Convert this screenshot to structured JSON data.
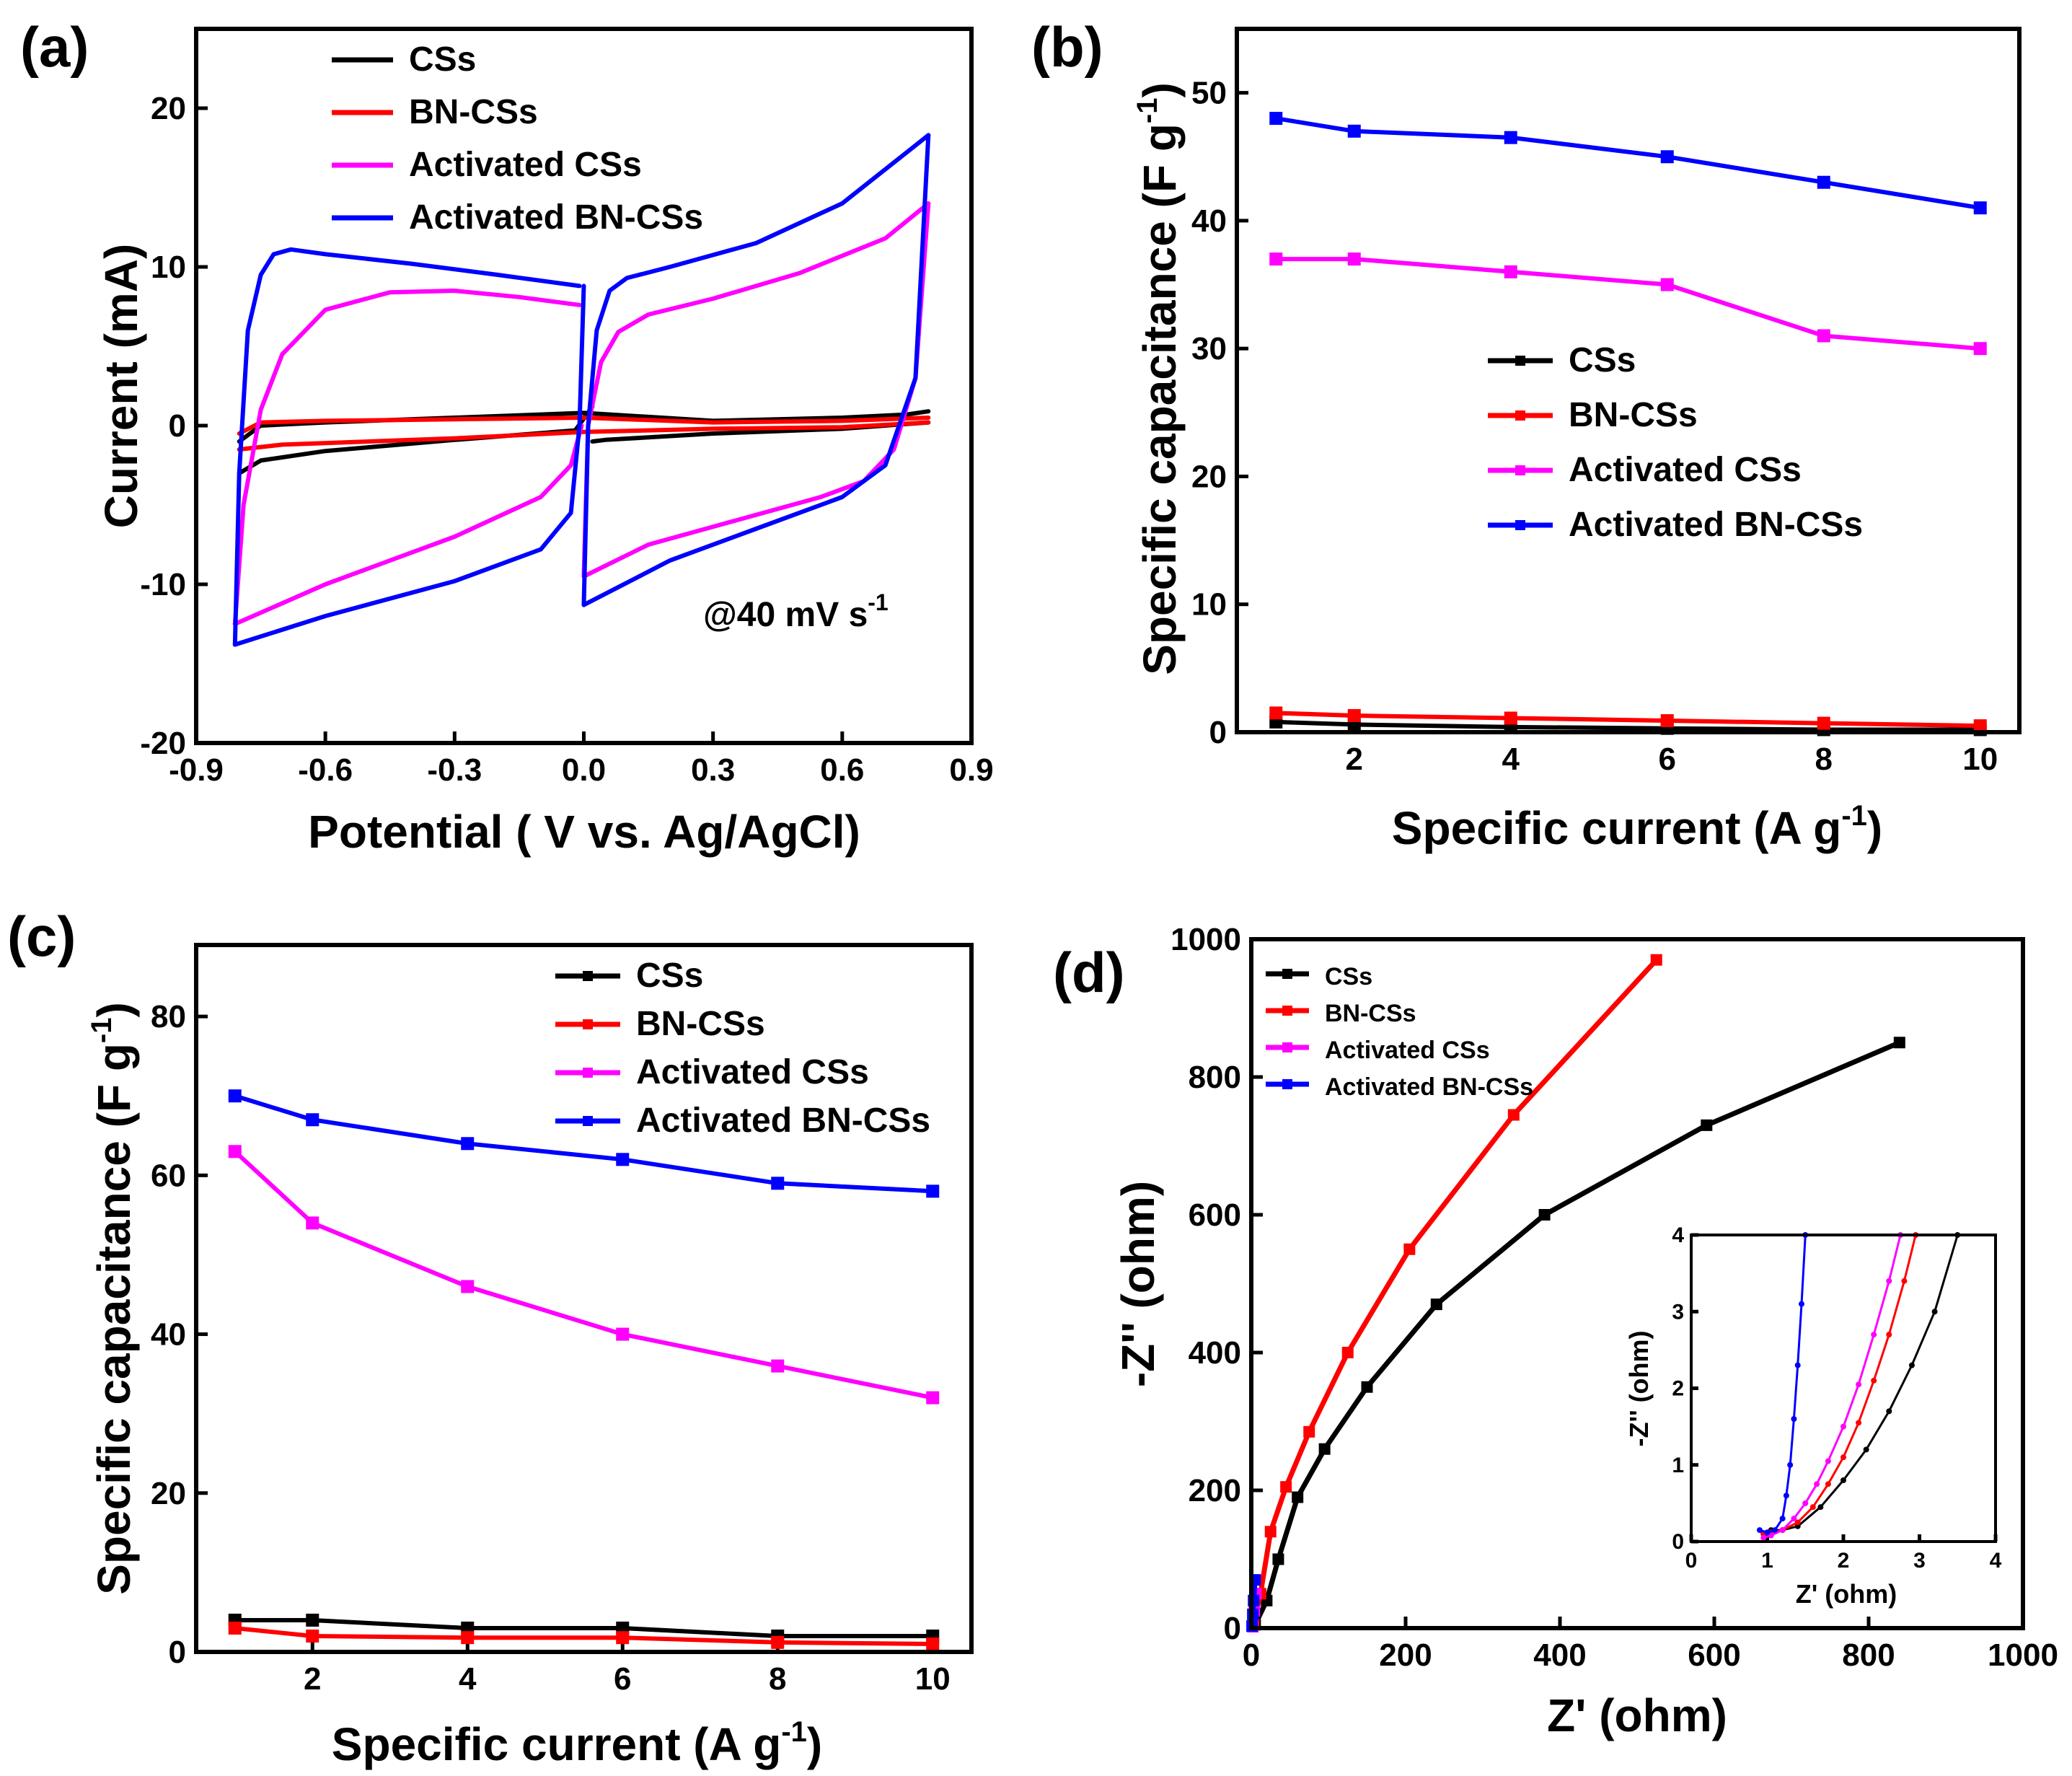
{
  "chart_data": [
    {
      "id": "a",
      "type": "line",
      "panel_label": "(a)",
      "title": "",
      "xlabel": "Potential ( V vs. Ag/AgCl)",
      "ylabel": "Current (mA)",
      "xlim": [
        -0.9,
        0.9
      ],
      "ylim": [
        -20,
        25
      ],
      "xticks": [
        "-0.9",
        "-0.6",
        "-0.3",
        "0.0",
        "0.3",
        "0.6",
        "0.9"
      ],
      "yticks": [
        "-20",
        "-10",
        "0",
        "10",
        "20"
      ],
      "annotation": "@40 mV s",
      "annotation_sup": "-1",
      "legend_position": "top-left",
      "series": [
        {
          "name": "CSs",
          "color": "#000000",
          "branches": [
            {
              "x": [
                -0.8,
                -0.75,
                -0.6,
                -0.3,
                0,
                0.3,
                0.6,
                0.75,
                0.8
              ],
              "y": [
                -1,
                0,
                0.2,
                0.5,
                0.8,
                0.3,
                0.5,
                0.7,
                0.9
              ]
            },
            {
              "x": [
                -0.8,
                -0.75,
                -0.6,
                -0.3,
                -0.02,
                0.02
              ],
              "y": [
                -3,
                -2.2,
                -1.6,
                -0.9,
                -0.3,
                1.2
              ]
            },
            {
              "x": [
                0.02,
                0.05,
                0.3,
                0.6,
                0.8
              ],
              "y": [
                -1,
                -0.9,
                -0.5,
                -0.2,
                0.2
              ]
            }
          ]
        },
        {
          "name": "BN-CSs",
          "color": "#ff0000",
          "branches": [
            {
              "x": [
                -0.8,
                -0.75,
                -0.6,
                -0.3,
                0,
                0.3,
                0.6,
                0.8
              ],
              "y": [
                -0.5,
                0.2,
                0.3,
                0.4,
                0.5,
                0.2,
                0.3,
                0.5
              ]
            },
            {
              "x": [
                -0.8,
                -0.7,
                -0.3,
                0,
                0.3,
                0.6,
                0.8
              ],
              "y": [
                -1.5,
                -1.2,
                -0.8,
                -0.4,
                -0.2,
                -0.1,
                0.2
              ]
            }
          ]
        },
        {
          "name": "Activated CSs",
          "color": "#ff00ff",
          "branches": [
            {
              "x": [
                -0.81,
                -0.79,
                -0.75,
                -0.7,
                -0.6,
                -0.45,
                -0.3,
                -0.15,
                -0.01
              ],
              "y": [
                -12.5,
                -5,
                1,
                4.5,
                7.3,
                8.4,
                8.5,
                8.1,
                7.6
              ]
            },
            {
              "x": [
                -0.81,
                -0.6,
                -0.3,
                -0.1,
                -0.03,
                -0.005
              ],
              "y": [
                -12.5,
                -10,
                -7,
                -4.5,
                -2.5,
                0
              ]
            },
            {
              "x": [
                0.0,
                0.01,
                0.04,
                0.08,
                0.15,
                0.3,
                0.5,
                0.7,
                0.8
              ],
              "y": [
                -9.5,
                0,
                4,
                5.9,
                7,
                8,
                9.6,
                11.8,
                14
              ]
            },
            {
              "x": [
                0.0,
                0.15,
                0.35,
                0.55,
                0.65,
                0.72,
                0.77,
                0.8
              ],
              "y": [
                -9.5,
                -7.5,
                -6,
                -4.5,
                -3.5,
                -1.5,
                3,
                14
              ]
            }
          ]
        },
        {
          "name": "Activated BN-CSs",
          "color": "#0000ff",
          "branches": [
            {
              "x": [
                -0.81,
                -0.8,
                -0.78,
                -0.75,
                -0.72,
                -0.68,
                -0.6,
                -0.4,
                -0.2,
                -0.01
              ],
              "y": [
                -13.8,
                -3,
                6,
                9.5,
                10.8,
                11.1,
                10.8,
                10.2,
                9.5,
                8.8
              ]
            },
            {
              "x": [
                -0.81,
                -0.6,
                -0.3,
                -0.1,
                -0.03,
                -0.01,
                0.0
              ],
              "y": [
                -13.8,
                -12,
                -9.8,
                -7.8,
                -5.5,
                0,
                8.8
              ]
            },
            {
              "x": [
                0.0,
                0.01,
                0.03,
                0.06,
                0.1,
                0.2,
                0.4,
                0.6,
                0.8
              ],
              "y": [
                -11.3,
                0,
                6,
                8.5,
                9.3,
                10,
                11.5,
                14,
                18.3
              ]
            },
            {
              "x": [
                0.0,
                0.2,
                0.4,
                0.6,
                0.7,
                0.77,
                0.8
              ],
              "y": [
                -11.3,
                -8.5,
                -6.5,
                -4.5,
                -2.5,
                3,
                18.3
              ]
            }
          ]
        }
      ]
    },
    {
      "id": "b",
      "type": "line",
      "panel_label": "(b)",
      "title": "",
      "xlabel": "Specific current (A g",
      "xlabel_sup": "-1",
      "ylabel": "Specific capacitance (F g",
      "ylabel_sup": "-1",
      "xlim": [
        0.5,
        10.5
      ],
      "ylim": [
        0,
        55
      ],
      "xticks": [
        "2",
        "4",
        "6",
        "8",
        "10"
      ],
      "yticks": [
        "0",
        "10",
        "20",
        "30",
        "40",
        "50"
      ],
      "legend_position": "center-right",
      "x": [
        1,
        2,
        4,
        6,
        8,
        10
      ],
      "series": [
        {
          "name": "CSs",
          "color": "#000000",
          "values": [
            0.8,
            0.6,
            0.4,
            0.3,
            0.2,
            0.2
          ]
        },
        {
          "name": "BN-CSs",
          "color": "#ff0000",
          "values": [
            1.5,
            1.3,
            1.1,
            0.9,
            0.7,
            0.5
          ]
        },
        {
          "name": "Activated CSs",
          "color": "#ff00ff",
          "values": [
            37,
            37,
            36,
            35,
            31,
            30
          ]
        },
        {
          "name": "Activated BN-CSs",
          "color": "#0000ff",
          "values": [
            48,
            47,
            46.5,
            45,
            43,
            41
          ]
        }
      ]
    },
    {
      "id": "c",
      "type": "line",
      "panel_label": "(c)",
      "title": "",
      "xlabel": "Specific current (A g",
      "xlabel_sup": "-1",
      "ylabel": "Specific capacitance (F g",
      "ylabel_sup": "-1",
      "xlim": [
        0.5,
        10.5
      ],
      "ylim": [
        0,
        89
      ],
      "xticks": [
        "2",
        "4",
        "6",
        "8",
        "10"
      ],
      "yticks": [
        "0",
        "20",
        "40",
        "60",
        "80"
      ],
      "legend_position": "top-right",
      "x": [
        1,
        2,
        4,
        6,
        8,
        10
      ],
      "series": [
        {
          "name": "CSs",
          "color": "#000000",
          "values": [
            4,
            4,
            3,
            3,
            2,
            2
          ]
        },
        {
          "name": "BN-CSs",
          "color": "#ff0000",
          "values": [
            3,
            2,
            1.8,
            1.8,
            1.2,
            1
          ]
        },
        {
          "name": "Activated CSs",
          "color": "#ff00ff",
          "values": [
            63,
            54,
            46,
            40,
            36,
            32
          ]
        },
        {
          "name": "Activated BN-CSs",
          "color": "#0000ff",
          "values": [
            70,
            67,
            64,
            62,
            59,
            58
          ]
        }
      ]
    },
    {
      "id": "d",
      "type": "scatter",
      "panel_label": "(d)",
      "title": "",
      "xlabel": "Z' (ohm)",
      "ylabel": "-Z'' (ohm)",
      "xlim": [
        0,
        1000
      ],
      "ylim": [
        0,
        1000
      ],
      "xticks": [
        "0",
        "200",
        "400",
        "600",
        "800",
        "1000"
      ],
      "yticks": [
        "0",
        "200",
        "400",
        "600",
        "800",
        "1000"
      ],
      "legend_position": "top-left",
      "series": [
        {
          "name": "CSs",
          "color": "#000000",
          "x": [
            5,
            20,
            35,
            60,
            95,
            150,
            240,
            380,
            590,
            840
          ],
          "y": [
            5,
            40,
            100,
            190,
            260,
            350,
            470,
            600,
            730,
            850
          ]
        },
        {
          "name": "BN-CSs",
          "color": "#ff0000",
          "x": [
            3,
            12,
            25,
            45,
            75,
            125,
            205,
            340,
            525
          ],
          "y": [
            5,
            50,
            140,
            205,
            285,
            400,
            550,
            745,
            970
          ]
        },
        {
          "name": "Activated CSs",
          "color": "#ff00ff",
          "x": [
            2,
            4,
            6
          ],
          "y": [
            2,
            25,
            50
          ]
        },
        {
          "name": "Activated BN-CSs",
          "color": "#0000ff",
          "x": [
            1,
            2,
            3,
            5
          ],
          "y": [
            3,
            20,
            40,
            70
          ]
        }
      ],
      "inset": {
        "xlabel": "Z' (ohm)",
        "ylabel": "-Z'' (ohm)",
        "xlim": [
          0,
          4
        ],
        "ylim": [
          0,
          4
        ],
        "xticks": [
          "0",
          "1",
          "2",
          "3",
          "4"
        ],
        "yticks": [
          "0",
          "1",
          "2",
          "3",
          "4"
        ],
        "series": [
          {
            "name": "CSs",
            "color": "#000000",
            "x": [
              0.95,
              1.05,
              1.2,
              1.4,
              1.7,
              2.0,
              2.3,
              2.6,
              2.9,
              3.2,
              3.5
            ],
            "y": [
              0.1,
              0.15,
              0.15,
              0.2,
              0.45,
              0.8,
              1.2,
              1.7,
              2.3,
              3.0,
              4.0
            ]
          },
          {
            "name": "BN-CSs",
            "color": "#ff0000",
            "x": [
              0.95,
              1.05,
              1.2,
              1.4,
              1.6,
              1.8,
              2.0,
              2.2,
              2.4,
              2.6,
              2.8,
              2.95
            ],
            "y": [
              0.1,
              0.12,
              0.15,
              0.25,
              0.45,
              0.75,
              1.1,
              1.55,
              2.1,
              2.7,
              3.4,
              4.0
            ]
          },
          {
            "name": "Activated CSs",
            "color": "#ff00ff",
            "x": [
              0.95,
              1.05,
              1.2,
              1.35,
              1.5,
              1.65,
              1.8,
              2.0,
              2.2,
              2.4,
              2.6,
              2.75
            ],
            "y": [
              0.05,
              0.08,
              0.15,
              0.3,
              0.5,
              0.75,
              1.05,
              1.5,
              2.05,
              2.7,
              3.4,
              4.0
            ]
          },
          {
            "name": "Activated BN-CSs",
            "color": "#0000ff",
            "x": [
              0.9,
              1.0,
              1.1,
              1.2,
              1.25,
              1.3,
              1.35,
              1.4,
              1.45,
              1.5
            ],
            "y": [
              0.15,
              0.12,
              0.15,
              0.3,
              0.6,
              1.0,
              1.6,
              2.3,
              3.1,
              4.0
            ]
          }
        ]
      }
    }
  ]
}
